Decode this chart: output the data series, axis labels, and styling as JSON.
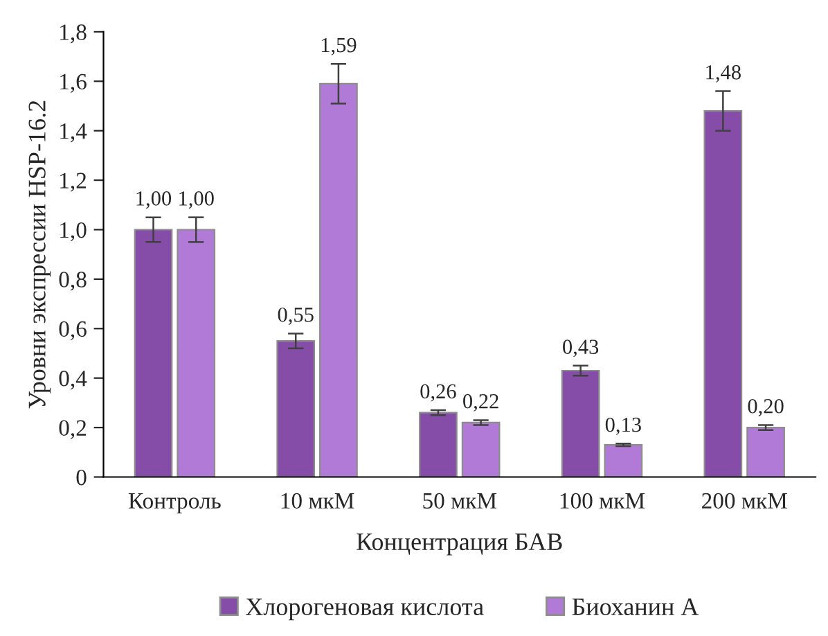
{
  "chart_data": {
    "type": "bar",
    "xlabel": "Концентрация БАВ",
    "ylabel": "Уровни экспрессии HSP-16.2",
    "categories": [
      "Контроль",
      "10 мкМ",
      "50 мкМ",
      "100 мкМ",
      "200 мкМ"
    ],
    "series": [
      {
        "name": "Хлорогеновая кислота",
        "color": "#854da8",
        "values": [
          1.0,
          0.55,
          0.26,
          0.43,
          1.48
        ],
        "errors": [
          0.05,
          0.03,
          0.01,
          0.02,
          0.08
        ],
        "value_labels": [
          "1,00",
          "0,55",
          "0,26",
          "0,43",
          "1,48"
        ]
      },
      {
        "name": "Биоханин А",
        "color": "#b07ad6",
        "values": [
          1.0,
          1.59,
          0.22,
          0.13,
          0.2
        ],
        "errors": [
          0.05,
          0.08,
          0.01,
          0.005,
          0.01
        ],
        "value_labels": [
          "1,00",
          "1,59",
          "0,22",
          "0,13",
          "0,20"
        ]
      }
    ],
    "ylim": [
      0,
      1.8
    ],
    "yticks": [
      0,
      {
        "value": 0.2,
        "label": "0,2"
      },
      {
        "value": 0.4,
        "label": "0,4"
      },
      {
        "value": 0.6,
        "label": "0,6"
      },
      {
        "value": 0.8,
        "label": "0,8"
      },
      {
        "value": 1.0,
        "label": "1,0"
      },
      {
        "value": 1.2,
        "label": "1,2"
      },
      {
        "value": 1.4,
        "label": "1,4"
      },
      {
        "value": 1.6,
        "label": "1,6"
      },
      {
        "value": 1.8,
        "label": "1,8"
      }
    ],
    "grid": false,
    "legend": "bottom"
  }
}
